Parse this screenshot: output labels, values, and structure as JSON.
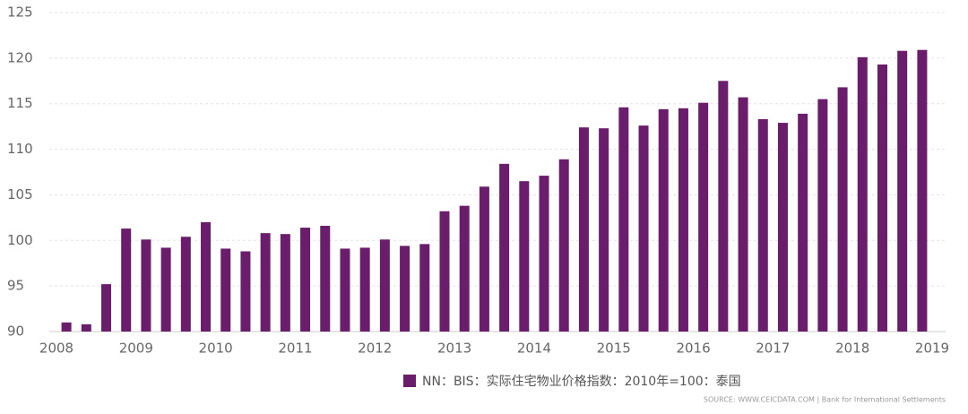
{
  "chart_data": {
    "type": "bar",
    "legend_label": "NN：BIS：实际住宅物业价格指数：2010年=100：泰国",
    "source": "SOURCE: WWW.CEICDATA.COM | Bank for International Settlements",
    "color": "#6a1d6b",
    "x": [
      2008.125,
      2008.375,
      2008.625,
      2008.875,
      2009.125,
      2009.375,
      2009.625,
      2009.875,
      2010.125,
      2010.375,
      2010.625,
      2010.875,
      2011.125,
      2011.375,
      2011.625,
      2011.875,
      2012.125,
      2012.375,
      2012.625,
      2012.875,
      2013.125,
      2013.375,
      2013.625,
      2013.875,
      2014.125,
      2014.375,
      2014.625,
      2014.875,
      2015.125,
      2015.375,
      2015.625,
      2015.875,
      2016.125,
      2016.375,
      2016.625,
      2016.875,
      2017.125,
      2017.375,
      2017.625,
      2017.875,
      2018.125,
      2018.375,
      2018.625,
      2018.875
    ],
    "values": [
      91.0,
      90.8,
      95.2,
      101.3,
      100.1,
      99.2,
      100.4,
      102.0,
      99.1,
      98.8,
      100.8,
      100.7,
      101.4,
      101.6,
      99.1,
      99.2,
      100.1,
      99.4,
      99.6,
      103.2,
      103.8,
      105.9,
      108.4,
      106.5,
      107.1,
      108.9,
      112.4,
      112.3,
      114.6,
      112.6,
      114.4,
      114.5,
      115.1,
      117.5,
      115.7,
      113.3,
      112.9,
      113.9,
      115.5,
      116.8,
      120.1,
      119.3,
      120.8,
      120.9
    ],
    "xlim": [
      2008,
      2019
    ],
    "xticks": [
      2008,
      2009,
      2010,
      2011,
      2012,
      2013,
      2014,
      2015,
      2016,
      2017,
      2018,
      2019
    ],
    "ylim": [
      90,
      125
    ],
    "yticks": [
      90,
      95,
      100,
      105,
      110,
      115,
      120,
      125
    ],
    "grid": true
  }
}
